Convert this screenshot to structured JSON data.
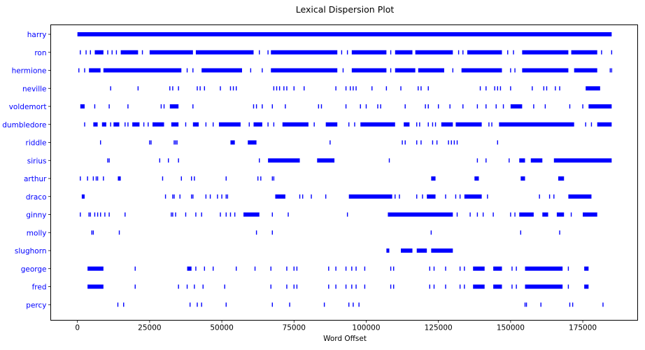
{
  "chart_data": {
    "type": "scatter",
    "title": "Lexical Dispersion Plot",
    "xlabel": "Word Offset",
    "ylabel": "",
    "xlim": [
      -9250,
      194000
    ],
    "x_ticks": [
      0,
      25000,
      50000,
      75000,
      100000,
      125000,
      150000,
      175000
    ],
    "grid": false,
    "legend": "none",
    "colors": {
      "marker": "#0000ff",
      "label": "#0000ff",
      "axis": "#000000",
      "background": "#ffffff"
    },
    "words": [
      {
        "word": "harry",
        "dense": [
          [
            0,
            185000
          ]
        ],
        "offsets": []
      },
      {
        "word": "ron",
        "dense": [
          [
            6000,
            9000
          ],
          [
            15000,
            21000
          ],
          [
            25000,
            40000
          ],
          [
            41000,
            61000
          ],
          [
            67000,
            90000
          ],
          [
            95000,
            107000
          ],
          [
            110000,
            116000
          ],
          [
            117000,
            130000
          ],
          [
            135000,
            147000
          ],
          [
            154000,
            170000
          ],
          [
            171000,
            180000
          ]
        ],
        "offsets": [
          1000,
          3000,
          4500,
          10500,
          12000,
          13500,
          22500,
          63000,
          66000,
          91500,
          93500,
          108500,
          132000,
          133500,
          149000,
          151000,
          181500,
          185000
        ]
      },
      {
        "word": "hermione",
        "dense": [
          [
            4000,
            8000
          ],
          [
            9000,
            36000
          ],
          [
            43000,
            57000
          ],
          [
            67000,
            90000
          ],
          [
            95000,
            107000
          ],
          [
            110000,
            117000
          ],
          [
            118000,
            127000
          ],
          [
            133000,
            147000
          ],
          [
            154000,
            170000
          ],
          [
            172000,
            180000
          ]
        ],
        "offsets": [
          500,
          2500,
          38000,
          40000,
          60000,
          64000,
          92000,
          108500,
          130000,
          150000,
          151500,
          184500,
          185000
        ]
      },
      {
        "word": "neville",
        "offsets": [
          11500,
          21000,
          32000,
          33000,
          35000,
          41500,
          42500,
          44000,
          49500,
          53000,
          54000,
          55000,
          68000,
          69000,
          70000,
          71500,
          72500,
          75000,
          78500,
          89500,
          93000,
          94500,
          95500,
          96500,
          102000,
          107000,
          112000,
          118000,
          119000,
          121500,
          139500,
          141500,
          144500,
          145500,
          146500,
          150000,
          157500,
          161500,
          162500,
          165500,
          167000
        ],
        "dense": [
          [
            176000,
            181000
          ]
        ]
      },
      {
        "word": "voldemort",
        "dense": [
          [
            1000,
            2500
          ],
          [
            32000,
            35000
          ],
          [
            150000,
            154000
          ],
          [
            177000,
            185000
          ]
        ],
        "offsets": [
          6000,
          11000,
          17500,
          29000,
          30000,
          40000,
          61000,
          62000,
          64000,
          67500,
          72000,
          83500,
          84500,
          93000,
          98000,
          100000,
          104000,
          105000,
          113500,
          120500,
          121500,
          125000,
          129000,
          133500,
          138500,
          141500,
          145000,
          147500,
          158000,
          162000,
          170500,
          175000
        ]
      },
      {
        "word": "dumbledore",
        "dense": [
          [
            5500,
            7000
          ],
          [
            8500,
            10000
          ],
          [
            12500,
            14500
          ],
          [
            19000,
            21500
          ],
          [
            26000,
            30000
          ],
          [
            32500,
            35000
          ],
          [
            40000,
            42000
          ],
          [
            49000,
            56500
          ],
          [
            61000,
            64000
          ],
          [
            71000,
            80000
          ],
          [
            86000,
            90000
          ],
          [
            98000,
            110000
          ],
          [
            113000,
            115000
          ],
          [
            126000,
            130000
          ],
          [
            131000,
            140000
          ],
          [
            146000,
            172000
          ],
          [
            180000,
            185000
          ]
        ],
        "offsets": [
          2500,
          11500,
          16500,
          17500,
          23000,
          24500,
          37500,
          44500,
          47000,
          59500,
          66000,
          68000,
          82000,
          94000,
          96000,
          117500,
          118500,
          121500,
          123000,
          124000,
          142500,
          143500,
          176000,
          178000
        ]
      },
      {
        "word": "riddle",
        "dense": [
          [
            53000,
            54500
          ],
          [
            59000,
            62000
          ]
        ],
        "offsets": [
          8000,
          25000,
          25500,
          33500,
          34000,
          34500,
          87500,
          112500,
          113500,
          117500,
          119000,
          123000,
          124500,
          128500,
          129500,
          130500,
          131500,
          145500
        ]
      },
      {
        "word": "sirius",
        "dense": [
          [
            66000,
            77000
          ],
          [
            83000,
            89000
          ],
          [
            153000,
            155000
          ],
          [
            157000,
            161000
          ],
          [
            165000,
            185000
          ]
        ],
        "offsets": [
          10500,
          11000,
          28500,
          31500,
          35000,
          63000,
          108000,
          138500,
          141500,
          149500
        ]
      },
      {
        "word": "arthur",
        "dense": [
          [
            14000,
            15000
          ],
          [
            122500,
            124000
          ],
          [
            137500,
            139000
          ],
          [
            153500,
            155000
          ],
          [
            166500,
            168500
          ]
        ],
        "offsets": [
          1000,
          3500,
          5500,
          6500,
          7000,
          9000,
          29500,
          36000,
          39500,
          40500,
          51500,
          62500,
          63500,
          67500,
          68000
        ]
      },
      {
        "word": "draco",
        "dense": [
          [
            1500,
            2500
          ],
          [
            68500,
            72000
          ],
          [
            94000,
            109000
          ],
          [
            121000,
            124000
          ],
          [
            134000,
            140000
          ],
          [
            170000,
            178000
          ]
        ],
        "offsets": [
          30500,
          33000,
          33500,
          35500,
          39500,
          40000,
          44500,
          46000,
          48500,
          50000,
          51500,
          52000,
          77000,
          78000,
          81000,
          86000,
          110000,
          111500,
          117500,
          119500,
          127500,
          131000,
          132500,
          142000,
          160000,
          163500,
          165000
        ]
      },
      {
        "word": "ginny",
        "dense": [
          [
            57500,
            63000
          ],
          [
            107500,
            130000
          ],
          [
            153000,
            158000
          ],
          [
            161000,
            163000
          ],
          [
            166000,
            168500
          ],
          [
            175000,
            180000
          ]
        ],
        "offsets": [
          1000,
          4000,
          4500,
          6000,
          7000,
          8000,
          9500,
          11000,
          16500,
          32500,
          33000,
          34000,
          37500,
          41000,
          43000,
          49500,
          51500,
          53000,
          54500,
          67500,
          73000,
          93500,
          131500,
          136000,
          138500,
          140500,
          144000,
          150000,
          151500,
          171000
        ]
      },
      {
        "word": "molly",
        "offsets": [
          5000,
          5500,
          14500,
          62000,
          67500,
          122500,
          153500,
          167000
        ],
        "dense": []
      },
      {
        "word": "slughorn",
        "dense": [
          [
            107000,
            108000
          ],
          [
            112000,
            116000
          ],
          [
            117500,
            121000
          ],
          [
            122500,
            130000
          ]
        ],
        "offsets": []
      },
      {
        "word": "george",
        "dense": [
          [
            3500,
            9000
          ],
          [
            38000,
            39500
          ],
          [
            137000,
            141000
          ],
          [
            144000,
            147000
          ],
          [
            155000,
            168000
          ],
          [
            175500,
            177000
          ]
        ],
        "offsets": [
          20000,
          41000,
          44000,
          47000,
          55000,
          61500,
          67000,
          72500,
          75000,
          76000,
          87000,
          89500,
          93000,
          95000,
          96500,
          99500,
          108500,
          109500,
          122000,
          123500,
          127500,
          132500,
          134000,
          150500,
          152000,
          170000
        ]
      },
      {
        "word": "fred",
        "dense": [
          [
            3500,
            9000
          ],
          [
            137000,
            141000
          ],
          [
            144000,
            147000
          ],
          [
            155000,
            168000
          ],
          [
            175500,
            177000
          ]
        ],
        "offsets": [
          20000,
          35000,
          38000,
          40500,
          43500,
          51000,
          67000,
          72500,
          75000,
          76000,
          87000,
          89500,
          93000,
          95000,
          96500,
          99500,
          108500,
          109500,
          122000,
          123500,
          127500,
          132500,
          134000,
          150500,
          152000,
          170000
        ]
      },
      {
        "word": "percy",
        "offsets": [
          14000,
          16000,
          39000,
          41500,
          43000,
          51500,
          67500,
          73500,
          85500,
          94000,
          95500,
          97500,
          155000,
          155500,
          160500,
          170500,
          171500,
          182000
        ],
        "dense": []
      }
    ]
  }
}
